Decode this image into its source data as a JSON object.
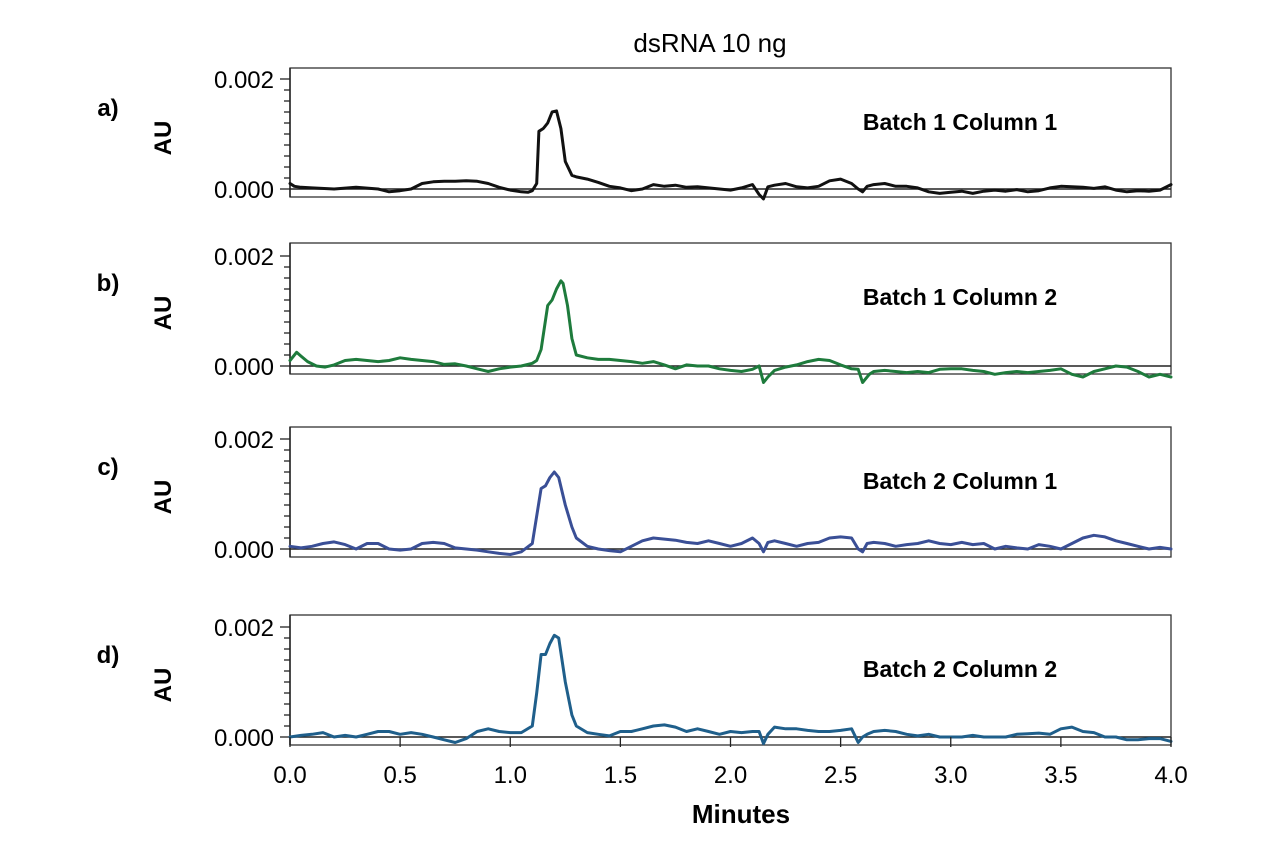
{
  "chart_data": {
    "type": "line",
    "title": "dsRNA 10 ng",
    "xlabel": "Minutes",
    "xlim": [
      0.0,
      4.0
    ],
    "x_ticks": [
      "0.0",
      "0.5",
      "1.0",
      "1.5",
      "2.0",
      "2.5",
      "3.0",
      "3.5",
      "4.0"
    ],
    "ylim": [
      -0.0004,
      0.0022
    ],
    "y_ticks": [
      "0.000",
      "0.002"
    ],
    "grid": false,
    "panels": [
      {
        "panel_label": "a)",
        "ylabel": "AU",
        "series_name": "Batch 1 Column 1",
        "color": "#111111",
        "x": [
          0.0,
          0.02,
          0.05,
          0.1,
          0.2,
          0.3,
          0.4,
          0.45,
          0.5,
          0.55,
          0.6,
          0.65,
          0.7,
          0.75,
          0.8,
          0.85,
          0.9,
          0.95,
          1.0,
          1.05,
          1.08,
          1.1,
          1.12,
          1.13,
          1.15,
          1.17,
          1.19,
          1.21,
          1.23,
          1.25,
          1.28,
          1.3,
          1.35,
          1.4,
          1.45,
          1.5,
          1.55,
          1.6,
          1.65,
          1.7,
          1.75,
          1.8,
          1.85,
          1.9,
          1.95,
          2.0,
          2.05,
          2.1,
          2.13,
          2.15,
          2.17,
          2.2,
          2.25,
          2.3,
          2.35,
          2.4,
          2.45,
          2.5,
          2.55,
          2.58,
          2.6,
          2.62,
          2.65,
          2.7,
          2.75,
          2.8,
          2.85,
          2.9,
          2.95,
          3.0,
          3.05,
          3.1,
          3.15,
          3.2,
          3.25,
          3.3,
          3.35,
          3.4,
          3.45,
          3.5,
          3.55,
          3.6,
          3.65,
          3.7,
          3.75,
          3.8,
          3.85,
          3.9,
          3.95,
          4.0
        ],
        "y": [
          0.0001,
          5e-05,
          3e-05,
          2e-05,
          0.0,
          3e-05,
          0.0,
          -5e-05,
          -3e-05,
          0.0,
          0.0001,
          0.00013,
          0.00014,
          0.00014,
          0.00015,
          0.00014,
          0.0001,
          3e-05,
          -2e-05,
          -5e-05,
          -6e-05,
          -3e-05,
          0.0001,
          0.00105,
          0.0011,
          0.0012,
          0.0014,
          0.00142,
          0.0011,
          0.0005,
          0.00025,
          0.00022,
          0.00018,
          0.00012,
          5e-05,
          2e-05,
          -3e-05,
          0.0,
          8e-05,
          5e-05,
          7e-05,
          3e-05,
          4e-05,
          2e-05,
          0.0,
          -2e-05,
          2e-05,
          8e-05,
          -0.0001,
          -0.00018,
          4e-05,
          7e-05,
          0.0001,
          4e-05,
          2e-05,
          5e-05,
          0.00015,
          0.00018,
          0.0001,
          0.0,
          -5e-05,
          5e-05,
          8e-05,
          0.0001,
          5e-05,
          5e-05,
          2e-05,
          -5e-05,
          -8e-05,
          -6e-05,
          -4e-05,
          -8e-05,
          -4e-05,
          -2e-05,
          -4e-05,
          -1e-05,
          -5e-05,
          -3e-05,
          2e-05,
          5e-05,
          4e-05,
          3e-05,
          1e-05,
          4e-05,
          -2e-05,
          -5e-05,
          -3e-05,
          -4e-05,
          -2e-05,
          8e-05
        ]
      },
      {
        "panel_label": "b)",
        "ylabel": "AU",
        "series_name": "Batch 1 Column 2",
        "color": "#1e7b3c",
        "x": [
          0.0,
          0.03,
          0.05,
          0.08,
          0.12,
          0.16,
          0.2,
          0.25,
          0.3,
          0.35,
          0.4,
          0.45,
          0.5,
          0.55,
          0.6,
          0.65,
          0.7,
          0.75,
          0.8,
          0.85,
          0.9,
          0.95,
          1.0,
          1.05,
          1.1,
          1.12,
          1.14,
          1.17,
          1.19,
          1.21,
          1.23,
          1.24,
          1.26,
          1.28,
          1.3,
          1.35,
          1.4,
          1.45,
          1.5,
          1.55,
          1.6,
          1.65,
          1.7,
          1.75,
          1.8,
          1.85,
          1.9,
          1.95,
          2.0,
          2.05,
          2.1,
          2.13,
          2.15,
          2.17,
          2.2,
          2.25,
          2.3,
          2.35,
          2.4,
          2.45,
          2.5,
          2.55,
          2.58,
          2.6,
          2.63,
          2.65,
          2.7,
          2.75,
          2.8,
          2.85,
          2.9,
          2.95,
          3.0,
          3.05,
          3.1,
          3.15,
          3.2,
          3.25,
          3.3,
          3.35,
          3.4,
          3.45,
          3.5,
          3.55,
          3.6,
          3.65,
          3.7,
          3.75,
          3.8,
          3.85,
          3.9,
          3.95,
          4.0
        ],
        "y": [
          0.0001,
          0.00025,
          0.00018,
          8e-05,
          0.0,
          -2e-05,
          2e-05,
          0.0001,
          0.00012,
          0.0001,
          8e-05,
          0.0001,
          0.00015,
          0.00012,
          0.0001,
          8e-05,
          3e-05,
          4e-05,
          0.0,
          -5e-05,
          -0.0001,
          -5e-05,
          -2e-05,
          0.0,
          5e-05,
          0.0001,
          0.0003,
          0.0011,
          0.0012,
          0.0014,
          0.00155,
          0.0015,
          0.0011,
          0.0005,
          0.0002,
          0.00015,
          0.00012,
          0.00012,
          0.0001,
          8e-05,
          5e-05,
          8e-05,
          2e-05,
          -5e-05,
          2e-05,
          0.0,
          0.0,
          -5e-05,
          -8e-05,
          -0.0001,
          -6e-05,
          0.0,
          -0.0003,
          -0.0002,
          -8e-05,
          -2e-05,
          2e-05,
          8e-05,
          0.00012,
          0.0001,
          2e-05,
          -5e-05,
          -6e-05,
          -0.0003,
          -0.00015,
          -0.0001,
          -8e-05,
          -0.0001,
          -0.00012,
          -0.0001,
          -0.00012,
          -6e-05,
          -5e-05,
          -5e-05,
          -8e-05,
          -0.0001,
          -0.00015,
          -0.00012,
          -0.0001,
          -0.00012,
          -0.0001,
          -8e-05,
          -5e-05,
          -0.00015,
          -0.0002,
          -0.0001,
          -5e-05,
          0.0,
          -2e-05,
          -0.0001,
          -0.0002,
          -0.00015,
          -0.0002
        ]
      },
      {
        "panel_label": "c)",
        "ylabel": "AU",
        "series_name": "Batch 2 Column 1",
        "color": "#3a4f96",
        "x": [
          0.0,
          0.05,
          0.1,
          0.15,
          0.2,
          0.25,
          0.3,
          0.35,
          0.4,
          0.45,
          0.5,
          0.55,
          0.6,
          0.65,
          0.7,
          0.75,
          0.8,
          0.85,
          0.9,
          0.95,
          1.0,
          1.05,
          1.1,
          1.12,
          1.14,
          1.16,
          1.18,
          1.2,
          1.22,
          1.25,
          1.28,
          1.3,
          1.35,
          1.4,
          1.45,
          1.5,
          1.55,
          1.6,
          1.65,
          1.7,
          1.75,
          1.8,
          1.85,
          1.9,
          1.95,
          2.0,
          2.05,
          2.1,
          2.13,
          2.15,
          2.17,
          2.2,
          2.25,
          2.3,
          2.35,
          2.4,
          2.45,
          2.5,
          2.55,
          2.58,
          2.6,
          2.62,
          2.65,
          2.7,
          2.75,
          2.8,
          2.85,
          2.9,
          2.95,
          3.0,
          3.05,
          3.1,
          3.15,
          3.2,
          3.25,
          3.3,
          3.35,
          3.4,
          3.45,
          3.5,
          3.55,
          3.6,
          3.65,
          3.7,
          3.75,
          3.8,
          3.85,
          3.9,
          3.95,
          4.0
        ],
        "y": [
          5e-05,
          2e-05,
          5e-05,
          0.0001,
          0.00013,
          8e-05,
          0.0,
          0.0001,
          0.0001,
          0.0,
          -2e-05,
          0.0,
          0.0001,
          0.00012,
          0.0001,
          2e-05,
          0.0,
          -2e-05,
          -5e-05,
          -8e-05,
          -0.0001,
          -5e-05,
          0.0001,
          0.0006,
          0.0011,
          0.00115,
          0.0013,
          0.0014,
          0.0013,
          0.0008,
          0.0004,
          0.0002,
          5e-05,
          0.0,
          -3e-05,
          -5e-05,
          5e-05,
          0.00015,
          0.0002,
          0.00018,
          0.00016,
          0.00012,
          0.0001,
          0.00015,
          0.0001,
          5e-05,
          0.0001,
          0.0002,
          0.0001,
          -5e-05,
          0.00012,
          0.00015,
          0.0001,
          5e-05,
          0.0001,
          0.00012,
          0.0002,
          0.00022,
          0.0002,
          0.0,
          -5e-05,
          0.0001,
          0.00012,
          0.0001,
          5e-05,
          8e-05,
          0.0001,
          0.00015,
          0.0001,
          8e-05,
          0.00012,
          8e-05,
          0.0001,
          0.0,
          5e-05,
          2e-05,
          0.0,
          8e-05,
          5e-05,
          0.0,
          0.0001,
          0.0002,
          0.00025,
          0.00022,
          0.00015,
          0.0001,
          5e-05,
          0.0,
          3e-05,
          0.0
        ]
      },
      {
        "panel_label": "d)",
        "ylabel": "AU",
        "series_name": "Batch 2 Column 2",
        "color": "#1f5f8b",
        "x": [
          0.0,
          0.05,
          0.1,
          0.15,
          0.2,
          0.25,
          0.3,
          0.35,
          0.4,
          0.45,
          0.5,
          0.55,
          0.6,
          0.65,
          0.7,
          0.75,
          0.8,
          0.85,
          0.9,
          0.95,
          1.0,
          1.05,
          1.1,
          1.12,
          1.14,
          1.16,
          1.18,
          1.2,
          1.22,
          1.25,
          1.28,
          1.3,
          1.35,
          1.4,
          1.45,
          1.5,
          1.55,
          1.6,
          1.65,
          1.7,
          1.75,
          1.8,
          1.85,
          1.9,
          1.95,
          2.0,
          2.05,
          2.1,
          2.13,
          2.15,
          2.17,
          2.2,
          2.25,
          2.3,
          2.35,
          2.4,
          2.45,
          2.5,
          2.55,
          2.58,
          2.6,
          2.62,
          2.65,
          2.7,
          2.75,
          2.8,
          2.85,
          2.9,
          2.95,
          3.0,
          3.05,
          3.1,
          3.15,
          3.2,
          3.25,
          3.3,
          3.35,
          3.4,
          3.45,
          3.5,
          3.55,
          3.6,
          3.65,
          3.7,
          3.75,
          3.8,
          3.85,
          3.9,
          3.95,
          4.0
        ],
        "y": [
          0.0,
          3e-05,
          5e-05,
          8e-05,
          0.0,
          3e-05,
          0.0,
          5e-05,
          0.0001,
          0.0001,
          5e-05,
          8e-05,
          5e-05,
          0.0,
          -5e-05,
          -0.0001,
          -3e-05,
          0.0001,
          0.00015,
          0.0001,
          8e-05,
          8e-05,
          0.0002,
          0.0008,
          0.0015,
          0.0015,
          0.0017,
          0.00185,
          0.0018,
          0.001,
          0.0004,
          0.0002,
          8e-05,
          5e-05,
          2e-05,
          0.0001,
          0.0001,
          0.00015,
          0.0002,
          0.00022,
          0.00018,
          0.0001,
          0.00015,
          0.0001,
          5e-05,
          0.0001,
          8e-05,
          0.0001,
          0.0001,
          -0.00012,
          5e-05,
          0.00018,
          0.00015,
          0.00015,
          0.00012,
          0.0001,
          0.0001,
          0.00012,
          0.00015,
          -0.0001,
          0.0,
          5e-05,
          0.0001,
          0.00012,
          0.0001,
          5e-05,
          2e-05,
          5e-05,
          0.0,
          0.0,
          0.0,
          3e-05,
          0.0,
          0.0,
          0.0,
          5e-05,
          6e-05,
          7e-05,
          5e-05,
          0.00015,
          0.00018,
          0.0001,
          8e-05,
          0.0,
          0.0,
          -5e-05,
          -5e-05,
          -3e-05,
          -3e-05,
          -8e-05
        ]
      }
    ]
  }
}
